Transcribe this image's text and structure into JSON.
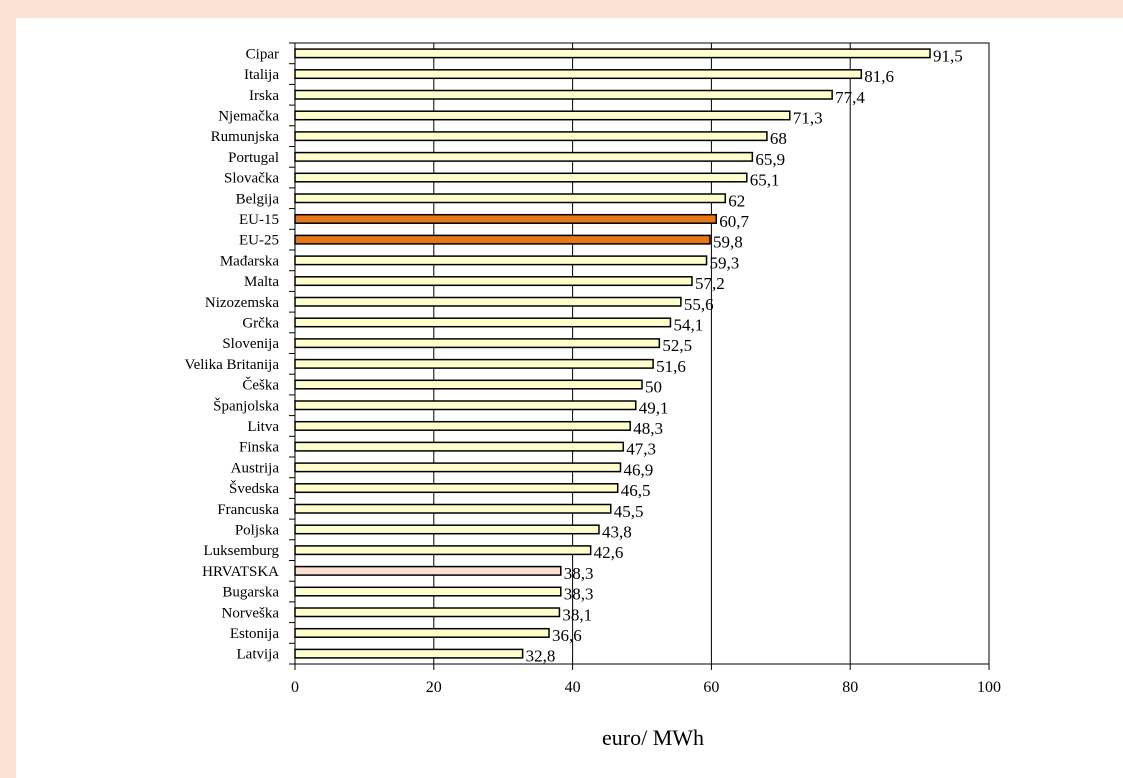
{
  "chart_data": {
    "type": "bar",
    "orientation": "horizontal",
    "title": "",
    "xlabel": "euro/ MWh",
    "ylabel": "",
    "xlim": [
      0,
      100
    ],
    "xticks": [
      0,
      20,
      40,
      60,
      80,
      100
    ],
    "grid": "vertical major gridlines",
    "legend": "none",
    "categories": [
      "Cipar",
      "Italija",
      "Irska",
      "Njemačka",
      "Rumunjska",
      "Portugal",
      "Slovačka",
      "Belgija",
      "EU-15",
      "EU-25",
      "Mađarska",
      "Malta",
      "Nizozemska",
      "Grčka",
      "Slovenija",
      "Velika Britanija",
      "Češka",
      "Španjolska",
      "Litva",
      "Finska",
      "Austrija",
      "Švedska",
      "Francuska",
      "Poljska",
      "Luksemburg",
      "HRVATSKA",
      "Bugarska",
      "Norveška",
      "Estonija",
      "Latvija"
    ],
    "values": [
      91.5,
      81.6,
      77.4,
      71.3,
      68,
      65.9,
      65.1,
      62,
      60.7,
      59.8,
      59.3,
      57.2,
      55.6,
      54.1,
      52.5,
      51.6,
      50,
      49.1,
      48.3,
      47.3,
      46.9,
      46.5,
      45.5,
      43.8,
      42.6,
      38.3,
      38.3,
      38.1,
      36.6,
      32.8
    ],
    "value_labels": [
      "91,5",
      "81,6",
      "77,4",
      "71,3",
      "68",
      "65,9",
      "65,1",
      "62",
      "60,7",
      "59,8",
      "59,3",
      "57,2",
      "55,6",
      "54,1",
      "52,5",
      "51,6",
      "50",
      "49,1",
      "48,3",
      "47,3",
      "46,9",
      "46,5",
      "45,5",
      "43,8",
      "42,6",
      "38,3",
      "38,3",
      "38,1",
      "36,6",
      "32,8"
    ],
    "colors": {
      "default": "#ffffcc",
      "EU-15": "#e8761a",
      "EU-25": "#e8761a",
      "HRVATSKA": "#fde0d2",
      "bar_border": "#000000",
      "page_border": "#fbe3d4"
    }
  }
}
